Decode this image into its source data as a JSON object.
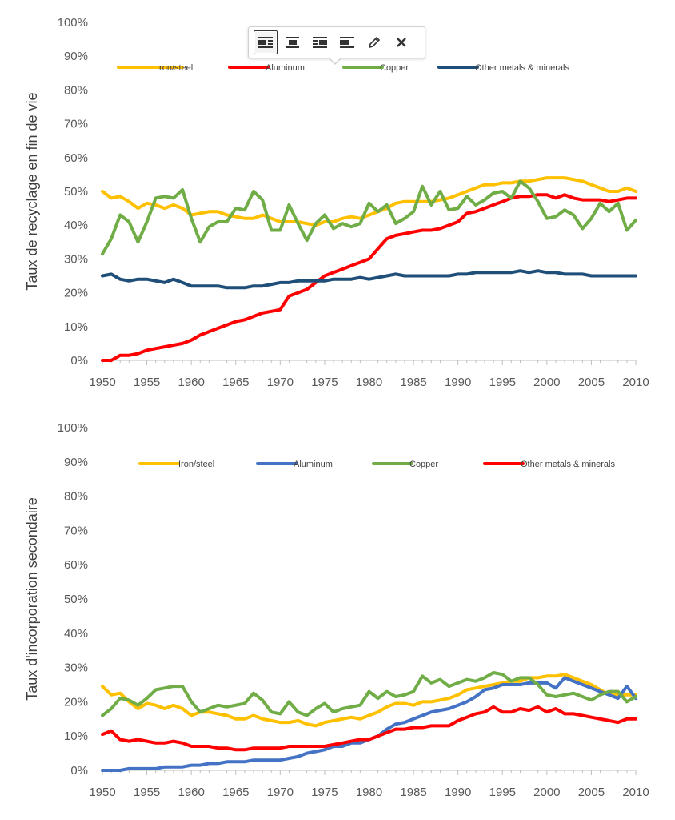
{
  "toolbar": {
    "buttons": [
      {
        "icon": "align-inline-icon",
        "active": true
      },
      {
        "icon": "align-center-icon",
        "active": false
      },
      {
        "icon": "align-wrap-right-icon",
        "active": false
      },
      {
        "icon": "align-left-icon",
        "active": false
      },
      {
        "icon": "edit-pencil-icon",
        "active": false
      },
      {
        "icon": "close-icon",
        "active": false
      }
    ]
  },
  "chart_data": [
    {
      "type": "line",
      "ylabel": "Taux de recyclage en fin de vie",
      "xlabel": "",
      "ylim": [
        0,
        100
      ],
      "xlim": [
        1950,
        2010
      ],
      "x_ticks": [
        "1950",
        "1955",
        "1960",
        "1965",
        "1970",
        "1975",
        "1980",
        "1985",
        "1990",
        "1995",
        "2000",
        "2005",
        "2010"
      ],
      "y_ticks": [
        "0%",
        "10%",
        "20%",
        "30%",
        "40%",
        "50%",
        "60%",
        "70%",
        "80%",
        "90%",
        "100%"
      ],
      "legend_position": "top",
      "series": [
        {
          "name": "Iron/steel",
          "color": "#FFC000",
          "years": [
            1950,
            1951,
            1952,
            1953,
            1954,
            1955,
            1956,
            1957,
            1958,
            1959,
            1960,
            1961,
            1962,
            1963,
            1964,
            1965,
            1966,
            1967,
            1968,
            1969,
            1970,
            1971,
            1972,
            1973,
            1974,
            1975,
            1976,
            1977,
            1978,
            1979,
            1980,
            1981,
            1982,
            1983,
            1984,
            1985,
            1986,
            1987,
            1988,
            1989,
            1990,
            1991,
            1992,
            1993,
            1994,
            1995,
            1996,
            1997,
            1998,
            1999,
            2000,
            2001,
            2002,
            2003,
            2004,
            2005,
            2006,
            2007,
            2008,
            2009,
            2010
          ],
          "values": [
            50,
            48,
            48.5,
            47,
            45,
            46.5,
            46,
            45,
            46,
            45,
            43,
            43.5,
            44,
            44,
            43,
            42.5,
            42,
            42,
            43,
            42,
            41,
            41,
            41,
            40.5,
            40,
            41,
            41,
            42,
            42.5,
            42,
            43,
            44,
            45,
            46.5,
            47,
            47,
            47,
            47,
            47.5,
            48,
            49,
            50,
            51,
            52,
            52,
            52.5,
            52.5,
            53,
            53,
            53.5,
            54,
            54,
            54,
            53.5,
            53,
            52,
            51,
            50,
            50,
            51,
            50
          ]
        },
        {
          "name": "Aluminum",
          "color": "#FF0000",
          "years": [
            1950,
            1951,
            1952,
            1953,
            1954,
            1955,
            1956,
            1957,
            1958,
            1959,
            1960,
            1961,
            1962,
            1963,
            1964,
            1965,
            1966,
            1967,
            1968,
            1969,
            1970,
            1971,
            1972,
            1973,
            1974,
            1975,
            1976,
            1977,
            1978,
            1979,
            1980,
            1981,
            1982,
            1983,
            1984,
            1985,
            1986,
            1987,
            1988,
            1989,
            1990,
            1991,
            1992,
            1993,
            1994,
            1995,
            1996,
            1997,
            1998,
            1999,
            2000,
            2001,
            2002,
            2003,
            2004,
            2005,
            2006,
            2007,
            2008,
            2009,
            2010
          ],
          "values": [
            0,
            0,
            1.5,
            1.5,
            2,
            3,
            3.5,
            4,
            4.5,
            5,
            6,
            7.5,
            8.5,
            9.5,
            10.5,
            11.5,
            12,
            13,
            14,
            14.5,
            15,
            19,
            20,
            21,
            23,
            25,
            26,
            27,
            28,
            29,
            30,
            33,
            36,
            37,
            37.5,
            38,
            38.5,
            38.5,
            39,
            40,
            41,
            43.5,
            44,
            45,
            46,
            47,
            48,
            48.5,
            48.5,
            49,
            49,
            48,
            49,
            48,
            47.5,
            47.5,
            47.5,
            47,
            47.5,
            48,
            48
          ]
        },
        {
          "name": "Copper",
          "color": "#70AD47",
          "years": [
            1950,
            1951,
            1952,
            1953,
            1954,
            1955,
            1956,
            1957,
            1958,
            1959,
            1960,
            1961,
            1962,
            1963,
            1964,
            1965,
            1966,
            1967,
            1968,
            1969,
            1970,
            1971,
            1972,
            1973,
            1974,
            1975,
            1976,
            1977,
            1978,
            1979,
            1980,
            1981,
            1982,
            1983,
            1984,
            1985,
            1986,
            1987,
            1988,
            1989,
            1990,
            1991,
            1992,
            1993,
            1994,
            1995,
            1996,
            1997,
            1998,
            1999,
            2000,
            2001,
            2002,
            2003,
            2004,
            2005,
            2006,
            2007,
            2008,
            2009,
            2010
          ],
          "values": [
            31.5,
            36,
            43,
            41,
            35,
            41,
            48,
            48.5,
            48,
            50.5,
            42,
            35,
            39.5,
            41,
            41,
            45,
            44.5,
            50,
            47.5,
            38.5,
            38.5,
            46,
            40.5,
            35.5,
            40.5,
            43,
            39,
            40.5,
            39.5,
            40.5,
            46.5,
            44,
            46,
            40.5,
            42,
            44,
            51.5,
            46,
            50,
            44.5,
            45,
            48.5,
            46,
            47.5,
            49.5,
            50,
            48,
            53,
            51,
            47,
            42,
            42.5,
            44.5,
            43,
            39,
            42,
            46.5,
            44,
            46.5,
            38.5,
            41.5
          ]
        },
        {
          "name": "Other metals & minerals",
          "color": "#1F4E79",
          "years": [
            1950,
            1951,
            1952,
            1953,
            1954,
            1955,
            1956,
            1957,
            1958,
            1959,
            1960,
            1961,
            1962,
            1963,
            1964,
            1965,
            1966,
            1967,
            1968,
            1969,
            1970,
            1971,
            1972,
            1973,
            1974,
            1975,
            1976,
            1977,
            1978,
            1979,
            1980,
            1981,
            1982,
            1983,
            1984,
            1985,
            1986,
            1987,
            1988,
            1989,
            1990,
            1991,
            1992,
            1993,
            1994,
            1995,
            1996,
            1997,
            1998,
            1999,
            2000,
            2001,
            2002,
            2003,
            2004,
            2005,
            2006,
            2007,
            2008,
            2009,
            2010
          ],
          "values": [
            25,
            25.5,
            24,
            23.5,
            24,
            24,
            23.5,
            23,
            24,
            23,
            22,
            22,
            22,
            22,
            21.5,
            21.5,
            21.5,
            22,
            22,
            22.5,
            23,
            23,
            23.5,
            23.5,
            23.5,
            23.5,
            24,
            24,
            24,
            24.5,
            24,
            24.5,
            25,
            25.5,
            25,
            25,
            25,
            25,
            25,
            25,
            25.5,
            25.5,
            26,
            26,
            26,
            26,
            26,
            26.5,
            26,
            26.5,
            26,
            26,
            25.5,
            25.5,
            25.5,
            25,
            25,
            25,
            25,
            25,
            25
          ]
        }
      ]
    },
    {
      "type": "line",
      "ylabel": "Taux d'incorporation secondaire",
      "xlabel": "",
      "ylim": [
        0,
        100
      ],
      "xlim": [
        1950,
        2010
      ],
      "x_ticks": [
        "1950",
        "1955",
        "1960",
        "1965",
        "1970",
        "1975",
        "1980",
        "1985",
        "1990",
        "1995",
        "2000",
        "2005",
        "2010"
      ],
      "y_ticks": [
        "0%",
        "10%",
        "20%",
        "30%",
        "40%",
        "50%",
        "60%",
        "70%",
        "80%",
        "90%",
        "100%"
      ],
      "legend_position": "top",
      "series": [
        {
          "name": "Iron/steel",
          "color": "#FFC000",
          "years": [
            1950,
            1951,
            1952,
            1953,
            1954,
            1955,
            1956,
            1957,
            1958,
            1959,
            1960,
            1961,
            1962,
            1963,
            1964,
            1965,
            1966,
            1967,
            1968,
            1969,
            1970,
            1971,
            1972,
            1973,
            1974,
            1975,
            1976,
            1977,
            1978,
            1979,
            1980,
            1981,
            1982,
            1983,
            1984,
            1985,
            1986,
            1987,
            1988,
            1989,
            1990,
            1991,
            1992,
            1993,
            1994,
            1995,
            1996,
            1997,
            1998,
            1999,
            2000,
            2001,
            2002,
            2003,
            2004,
            2005,
            2006,
            2007,
            2008,
            2009,
            2010
          ],
          "values": [
            24.5,
            22,
            22.5,
            20,
            18,
            19.5,
            19,
            18,
            19,
            18,
            16,
            17,
            17,
            16.5,
            16,
            15,
            15,
            16,
            15,
            14.5,
            14,
            14,
            14.5,
            13.5,
            13,
            14,
            14.5,
            15,
            15.5,
            15,
            16,
            17,
            18.5,
            19.5,
            19.5,
            19,
            20,
            20,
            20.5,
            21,
            22,
            23.5,
            24,
            24.5,
            25,
            25.5,
            26,
            26,
            27,
            27,
            27.5,
            27.5,
            28,
            27,
            26,
            25,
            23.5,
            22,
            22,
            22,
            22
          ]
        },
        {
          "name": "Aluminum",
          "color": "#4472C4",
          "years": [
            1950,
            1951,
            1952,
            1953,
            1954,
            1955,
            1956,
            1957,
            1958,
            1959,
            1960,
            1961,
            1962,
            1963,
            1964,
            1965,
            1966,
            1967,
            1968,
            1969,
            1970,
            1971,
            1972,
            1973,
            1974,
            1975,
            1976,
            1977,
            1978,
            1979,
            1980,
            1981,
            1982,
            1983,
            1984,
            1985,
            1986,
            1987,
            1988,
            1989,
            1990,
            1991,
            1992,
            1993,
            1994,
            1995,
            1996,
            1997,
            1998,
            1999,
            2000,
            2001,
            2002,
            2003,
            2004,
            2005,
            2006,
            2007,
            2008,
            2009,
            2010
          ],
          "values": [
            0,
            0,
            0,
            0.5,
            0.5,
            0.5,
            0.5,
            1,
            1,
            1,
            1.5,
            1.5,
            2,
            2,
            2.5,
            2.5,
            2.5,
            3,
            3,
            3,
            3,
            3.5,
            4,
            5,
            5.5,
            6,
            7,
            7,
            8,
            8,
            9,
            10,
            12,
            13.5,
            14,
            15,
            16,
            17,
            17.5,
            18,
            19,
            20,
            21.5,
            23.5,
            24,
            25,
            25,
            25,
            25.5,
            25.5,
            25.5,
            24,
            27,
            26,
            25,
            24,
            23,
            22,
            21,
            24.5,
            21
          ]
        },
        {
          "name": "Copper",
          "color": "#70AD47",
          "years": [
            1950,
            1951,
            1952,
            1953,
            1954,
            1955,
            1956,
            1957,
            1958,
            1959,
            1960,
            1961,
            1962,
            1963,
            1964,
            1965,
            1966,
            1967,
            1968,
            1969,
            1970,
            1971,
            1972,
            1973,
            1974,
            1975,
            1976,
            1977,
            1978,
            1979,
            1980,
            1981,
            1982,
            1983,
            1984,
            1985,
            1986,
            1987,
            1988,
            1989,
            1990,
            1991,
            1992,
            1993,
            1994,
            1995,
            1996,
            1997,
            1998,
            1999,
            2000,
            2001,
            2002,
            2003,
            2004,
            2005,
            2006,
            2007,
            2008,
            2009,
            2010
          ],
          "values": [
            16,
            18,
            21,
            20.5,
            19,
            21,
            23.5,
            24,
            24.5,
            24.5,
            20,
            17,
            18,
            19,
            18.5,
            19,
            19.5,
            22.5,
            20.5,
            17,
            16.5,
            20,
            17,
            16,
            18,
            19.5,
            17,
            18,
            18.5,
            19,
            23,
            21,
            23,
            21.5,
            22,
            23,
            27.5,
            25.5,
            26.5,
            24.5,
            25.5,
            26.5,
            26,
            27,
            28.5,
            28,
            26,
            27,
            27,
            25,
            22,
            21.5,
            22,
            22.5,
            21.5,
            20.5,
            22,
            23,
            23,
            20,
            21.5
          ]
        },
        {
          "name": "Other metals & minerals",
          "color": "#FF0000",
          "years": [
            1950,
            1951,
            1952,
            1953,
            1954,
            1955,
            1956,
            1957,
            1958,
            1959,
            1960,
            1961,
            1962,
            1963,
            1964,
            1965,
            1966,
            1967,
            1968,
            1969,
            1970,
            1971,
            1972,
            1973,
            1974,
            1975,
            1976,
            1977,
            1978,
            1979,
            1980,
            1981,
            1982,
            1983,
            1984,
            1985,
            1986,
            1987,
            1988,
            1989,
            1990,
            1991,
            1992,
            1993,
            1994,
            1995,
            1996,
            1997,
            1998,
            1999,
            2000,
            2001,
            2002,
            2003,
            2004,
            2005,
            2006,
            2007,
            2008,
            2009,
            2010
          ],
          "values": [
            10.5,
            11.5,
            9,
            8.5,
            9,
            8.5,
            8,
            8,
            8.5,
            8,
            7,
            7,
            7,
            6.5,
            6.5,
            6,
            6,
            6.5,
            6.5,
            6.5,
            6.5,
            7,
            7,
            7,
            7,
            7,
            7.5,
            8,
            8.5,
            9,
            9,
            10,
            11,
            12,
            12,
            12.5,
            12.5,
            13,
            13,
            13,
            14.5,
            15.5,
            16.5,
            17,
            18.5,
            17,
            17,
            18,
            17.5,
            18.5,
            17,
            18,
            16.5,
            16.5,
            16,
            15.5,
            15,
            14.5,
            14,
            15,
            15
          ]
        }
      ]
    }
  ]
}
